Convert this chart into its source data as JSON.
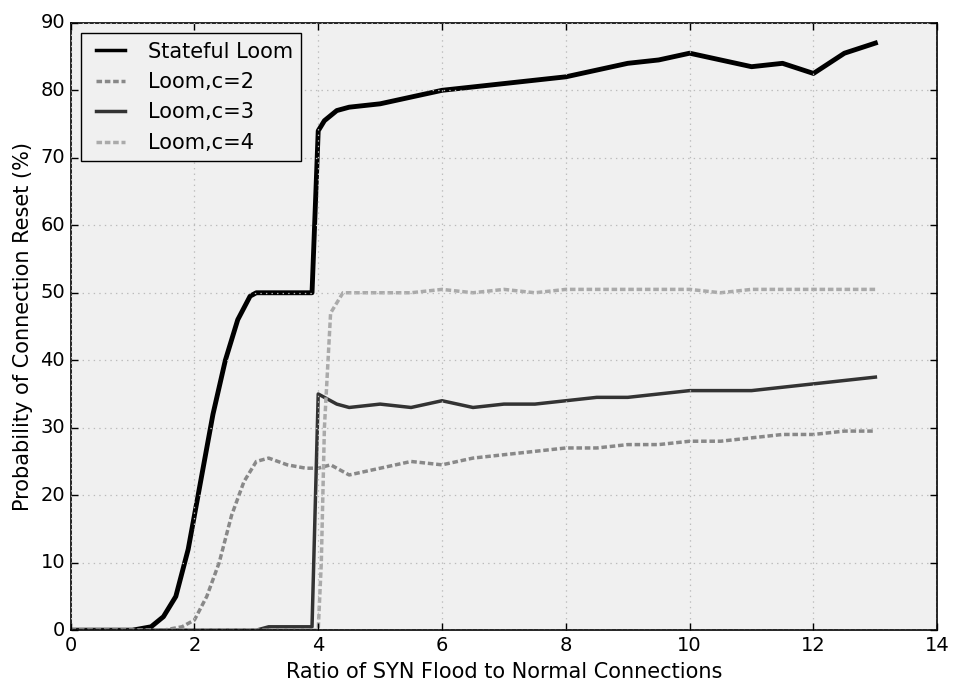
{
  "title": "",
  "xlabel": "Ratio of SYN Flood to Normal Connections",
  "ylabel": "Probability of Connection Reset (%)",
  "xlim": [
    0,
    14
  ],
  "ylim": [
    0,
    90
  ],
  "xticks": [
    0,
    2,
    4,
    6,
    8,
    10,
    12,
    14
  ],
  "yticks": [
    0,
    10,
    20,
    30,
    40,
    50,
    60,
    70,
    80,
    90
  ],
  "background_color": "#f0f0f0",
  "axes_background": "#f0f0f0",
  "series": [
    {
      "label": "Stateful Loom",
      "color": "#000000",
      "linewidth": 3.5,
      "linestyle": "solid",
      "x": [
        0.0,
        1.0,
        1.3,
        1.5,
        1.7,
        1.9,
        2.1,
        2.3,
        2.5,
        2.7,
        2.9,
        3.0,
        3.1,
        3.2,
        3.5,
        3.8,
        3.9,
        4.0,
        4.1,
        4.3,
        4.5,
        5.0,
        5.5,
        6.0,
        6.5,
        7.0,
        7.5,
        8.0,
        8.5,
        9.0,
        9.5,
        10.0,
        10.5,
        11.0,
        11.5,
        12.0,
        12.5,
        13.0
      ],
      "y": [
        0.0,
        0.0,
        0.5,
        2.0,
        5.0,
        12.0,
        22.0,
        32.0,
        40.0,
        46.0,
        49.5,
        50.0,
        50.0,
        50.0,
        50.0,
        50.0,
        50.0,
        74.0,
        75.5,
        77.0,
        77.5,
        78.0,
        79.0,
        80.0,
        80.5,
        81.0,
        81.5,
        82.0,
        83.0,
        84.0,
        84.5,
        85.5,
        84.5,
        83.5,
        84.0,
        82.5,
        85.5,
        87.0
      ]
    },
    {
      "label": "Loom,c=2",
      "color": "#888888",
      "linewidth": 2.5,
      "linestyle": "dashed",
      "x": [
        0.0,
        1.0,
        1.5,
        1.8,
        2.0,
        2.2,
        2.4,
        2.6,
        2.8,
        3.0,
        3.2,
        3.5,
        3.8,
        4.0,
        4.2,
        4.5,
        5.0,
        5.5,
        6.0,
        6.5,
        7.0,
        7.5,
        8.0,
        8.5,
        9.0,
        9.5,
        10.0,
        10.5,
        11.0,
        11.5,
        12.0,
        12.5,
        13.0
      ],
      "y": [
        0.0,
        0.0,
        0.0,
        0.5,
        1.5,
        5.0,
        10.0,
        17.0,
        22.0,
        25.0,
        25.5,
        24.5,
        24.0,
        24.0,
        24.5,
        23.0,
        24.0,
        25.0,
        24.5,
        25.5,
        26.0,
        26.5,
        27.0,
        27.0,
        27.5,
        27.5,
        28.0,
        28.0,
        28.5,
        29.0,
        29.0,
        29.5,
        29.5
      ]
    },
    {
      "label": "Loom,c=3",
      "color": "#333333",
      "linewidth": 2.5,
      "linestyle": "solid",
      "x": [
        0.0,
        1.0,
        2.0,
        2.5,
        3.0,
        3.2,
        3.5,
        3.8,
        3.9,
        4.0,
        4.1,
        4.3,
        4.5,
        5.0,
        5.5,
        6.0,
        6.5,
        7.0,
        7.5,
        8.0,
        8.5,
        9.0,
        9.5,
        10.0,
        10.5,
        11.0,
        11.5,
        12.0,
        12.5,
        13.0
      ],
      "y": [
        0.0,
        0.0,
        0.0,
        0.0,
        0.0,
        0.5,
        0.5,
        0.5,
        0.5,
        35.0,
        34.5,
        33.5,
        33.0,
        33.5,
        33.0,
        34.0,
        33.0,
        33.5,
        33.5,
        34.0,
        34.5,
        34.5,
        35.0,
        35.5,
        35.5,
        35.5,
        36.0,
        36.5,
        37.0,
        37.5
      ]
    },
    {
      "label": "Loom,c=4",
      "color": "#aaaaaa",
      "linewidth": 2.5,
      "linestyle": "dashed",
      "x": [
        0.0,
        1.0,
        2.0,
        3.0,
        3.5,
        3.8,
        3.9,
        4.0,
        4.05,
        4.1,
        4.2,
        4.4,
        4.6,
        4.8,
        5.0,
        5.5,
        6.0,
        6.5,
        7.0,
        7.5,
        8.0,
        8.5,
        9.0,
        9.5,
        10.0,
        10.5,
        11.0,
        11.5,
        12.0,
        12.5,
        13.0
      ],
      "y": [
        0.0,
        0.0,
        0.0,
        0.0,
        0.0,
        0.0,
        0.0,
        0.0,
        10.0,
        30.0,
        47.0,
        50.0,
        50.0,
        50.0,
        50.0,
        50.0,
        50.5,
        50.0,
        50.5,
        50.0,
        50.5,
        50.5,
        50.5,
        50.5,
        50.5,
        50.0,
        50.5,
        50.5,
        50.5,
        50.5,
        50.5
      ]
    }
  ],
  "legend_loc": "upper left",
  "legend_fontsize": 15,
  "axis_fontsize": 15,
  "tick_fontsize": 14,
  "grid_color": "#aaaaaa",
  "grid_linestyle": "dotted"
}
